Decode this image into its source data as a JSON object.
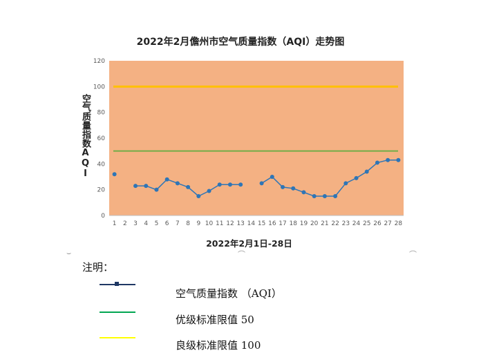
{
  "chart_data": {
    "type": "line",
    "title": "2022年2月儋州市空气质量指数（AQI）走势图",
    "xlabel": "2022年2月1日-28日",
    "ylabel": "空气质量指数AQI",
    "ylim": [
      0,
      120
    ],
    "yticks": [
      0,
      20,
      40,
      60,
      80,
      100,
      120
    ],
    "grid": false,
    "plot_background": "#f4b183",
    "categories": [
      "1",
      "2",
      "3",
      "4",
      "5",
      "6",
      "7",
      "8",
      "9",
      "10",
      "11",
      "12",
      "13",
      "14",
      "15",
      "16",
      "17",
      "18",
      "19",
      "20",
      "21",
      "22",
      "23",
      "24",
      "25",
      "26",
      "27",
      "28"
    ],
    "series": [
      {
        "name": "空气质量指数 （AQI）",
        "color": "#2e75b6",
        "values": [
          32,
          null,
          23,
          23,
          20,
          28,
          25,
          22,
          15,
          19,
          24,
          24,
          24,
          null,
          25,
          30,
          22,
          21,
          18,
          15,
          15,
          15,
          25,
          29,
          34,
          41,
          43,
          43
        ]
      }
    ],
    "reference_lines": [
      {
        "value": 50,
        "color": "#70ad47"
      },
      {
        "value": 100,
        "color": "#ffc000"
      }
    ]
  },
  "notes": {
    "heading": "注明：",
    "items": [
      {
        "label": "空气质量指数 （AQI）",
        "color": "#1f3864",
        "icon": "line-with-square-marker"
      },
      {
        "label": "优级标准限值 50",
        "color": "#00a651",
        "icon": "solid-line"
      },
      {
        "label": "良级标准限值 100",
        "color": "#ffff00",
        "icon": "solid-line"
      }
    ]
  }
}
